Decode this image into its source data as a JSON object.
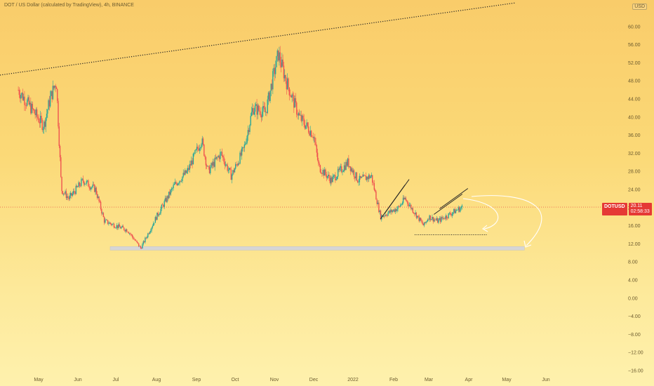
{
  "header": {
    "title": "DOT / US Dollar (calculated by TradingView), 4h, BINANCE",
    "currency": "USD"
  },
  "price_tag": {
    "symbol": "DOTUSD",
    "price": "20.11",
    "countdown": "02:58:33"
  },
  "colors": {
    "up": "#26a69a",
    "down": "#ef5350",
    "trendline": "#222222",
    "price_line": "#e53935",
    "support_zone": "#d6d6d6",
    "arrow": "#ffffff"
  },
  "chart_data": {
    "type": "candlestick",
    "title": "DOT / US Dollar (calculated by TradingView), 4h, BINANCE",
    "ylim": [
      -16,
      64
    ],
    "y_ticks": [
      "60.00",
      "56.00",
      "52.00",
      "48.00",
      "44.00",
      "40.00",
      "36.00",
      "32.00",
      "28.00",
      "24.00",
      "20.00",
      "16.00",
      "12.00",
      "8.00",
      "4.00",
      "0.00",
      "−4.00",
      "−8.00",
      "−12.00",
      "−16.00"
    ],
    "x_ticks": [
      "May",
      "Jun",
      "Jul",
      "Aug",
      "Sep",
      "Oct",
      "Nov",
      "Dec",
      "2022",
      "Feb",
      "Mar",
      "Apr",
      "May",
      "Jun"
    ],
    "price_path": [
      [
        "2021-04-15",
        46
      ],
      [
        "2021-04-25",
        42
      ],
      [
        "2021-05-05",
        38
      ],
      [
        "2021-05-10",
        44
      ],
      [
        "2021-05-15",
        48
      ],
      [
        "2021-05-19",
        24
      ],
      [
        "2021-05-25",
        22
      ],
      [
        "2021-06-05",
        26
      ],
      [
        "2021-06-15",
        24
      ],
      [
        "2021-06-22",
        17
      ],
      [
        "2021-07-01",
        16
      ],
      [
        "2021-07-10",
        15
      ],
      [
        "2021-07-20",
        11
      ],
      [
        "2021-08-01",
        18
      ],
      [
        "2021-08-15",
        25
      ],
      [
        "2021-08-25",
        28
      ],
      [
        "2021-09-05",
        35
      ],
      [
        "2021-09-10",
        28
      ],
      [
        "2021-09-20",
        32
      ],
      [
        "2021-09-28",
        27
      ],
      [
        "2021-10-08",
        33
      ],
      [
        "2021-10-15",
        42
      ],
      [
        "2021-10-25",
        41
      ],
      [
        "2021-11-04",
        54
      ],
      [
        "2021-11-10",
        48
      ],
      [
        "2021-11-20",
        40
      ],
      [
        "2021-12-01",
        36
      ],
      [
        "2021-12-05",
        29
      ],
      [
        "2021-12-15",
        26
      ],
      [
        "2021-12-28",
        30
      ],
      [
        "2022-01-05",
        26
      ],
      [
        "2022-01-15",
        27
      ],
      [
        "2022-01-22",
        18
      ],
      [
        "2022-02-05",
        20
      ],
      [
        "2022-02-10",
        22
      ],
      [
        "2022-02-25",
        16
      ],
      [
        "2022-03-01",
        18
      ],
      [
        "2022-03-08",
        17
      ],
      [
        "2022-03-20",
        19
      ],
      [
        "2022-03-27",
        20.11
      ]
    ],
    "last_price": 20.11,
    "annotations": {
      "long_trendline": [
        [
          "2021-04-15",
          48.5
        ],
        [
          "2022-05-15",
          67
        ]
      ],
      "support_zone": [
        [
          "2021-07-01",
          11.4
        ],
        [
          "2022-05-15",
          10.6
        ]
      ],
      "channel_1": [
        [
          "2022-01-22",
          17.5
        ],
        [
          "2022-02-10",
          25
        ]
      ],
      "channel_2": [
        [
          "2022-03-05",
          18.5
        ],
        [
          "2022-03-27",
          23
        ]
      ],
      "target_1": [
        [
          "2022-03-01",
          14
        ],
        [
          "2022-03-30",
          14
        ]
      ]
    }
  }
}
